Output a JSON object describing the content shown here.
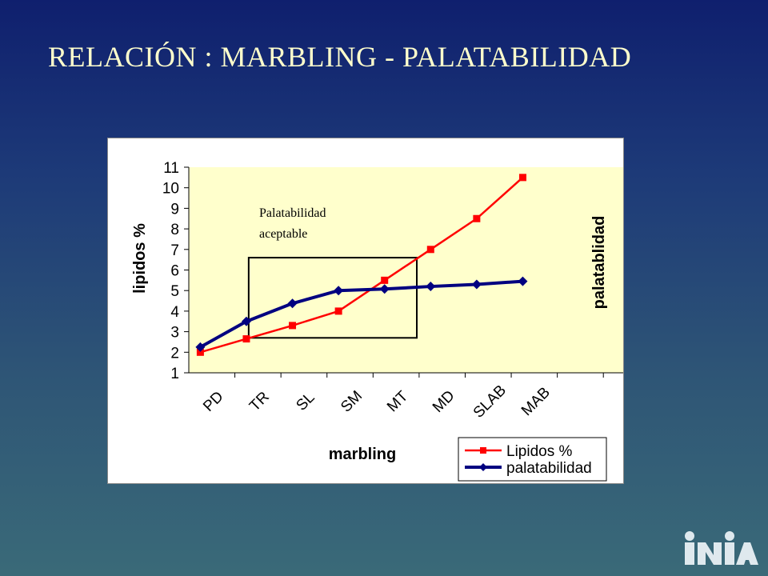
{
  "slide": {
    "title": "RELACIÓN : MARBLING - PALATABILIDAD"
  },
  "colors": {
    "lipidos": "#ff0000",
    "palatabilidad": "#000080",
    "plot_bg": "#ffffcc"
  },
  "chart_data": {
    "type": "line",
    "title": "",
    "xlabel": "marbling",
    "ylabel": "lipidos %",
    "y2label": "palatablidad",
    "categories": [
      "PD",
      "TR",
      "SL",
      "SM",
      "MT",
      "MD",
      "SLAB",
      "MAB"
    ],
    "ylim": [
      1,
      11
    ],
    "y2lim": [
      4,
      8
    ],
    "yticks": [
      "1",
      "2",
      "3",
      "4",
      "5",
      "6",
      "7",
      "8",
      "9",
      "10",
      "11"
    ],
    "y2ticks": [
      "4",
      "4.5",
      "5",
      "5.5",
      "6",
      "6.5",
      "7",
      "7.5",
      "8"
    ],
    "x_points": [
      0.25,
      1.25,
      2.25,
      3.25,
      4.25,
      5.25,
      6.25,
      7.25
    ],
    "series": [
      {
        "name": "Lipidos %",
        "axis": "left",
        "marker": "square",
        "values": [
          2.0,
          2.65,
          3.3,
          4.0,
          5.5,
          7.0,
          8.5,
          10.5
        ]
      },
      {
        "name": "palatabilidad",
        "axis": "right",
        "marker": "diamond",
        "values": [
          4.5,
          5.0,
          5.35,
          5.6,
          5.63,
          5.68,
          5.72,
          5.78
        ]
      }
    ],
    "annotation": {
      "line1": "Palatabilidad",
      "line2": "aceptable",
      "x_range": [
        1.3,
        4.95
      ],
      "y_range": [
        2.7,
        6.6
      ]
    },
    "legend_position": "bottom-right",
    "grid": false
  },
  "logo": {
    "text": "INIA"
  }
}
